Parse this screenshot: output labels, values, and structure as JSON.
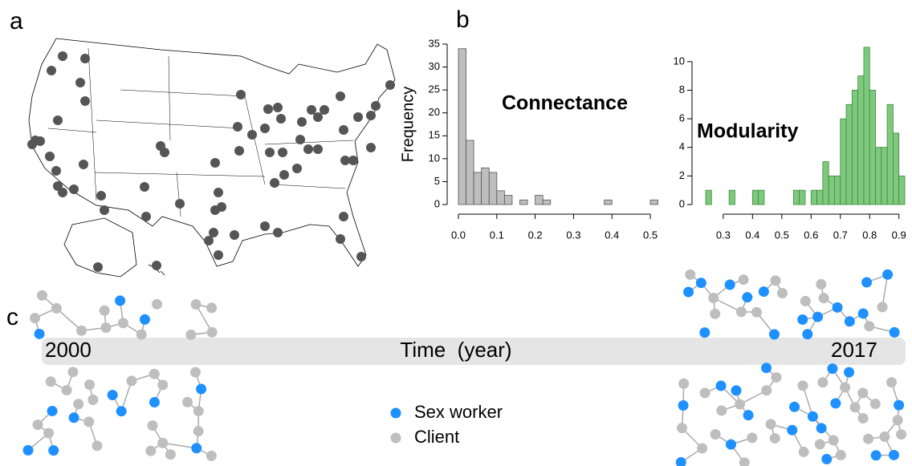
{
  "panel_labels": [
    "a",
    "b",
    "c"
  ],
  "chart_data": [
    {
      "type": "histogram",
      "title": "Connectance",
      "ylabel": "Frequency",
      "bins": [
        0,
        0.02,
        0.04,
        0.06,
        0.08,
        0.1,
        0.12,
        0.14,
        0.16,
        0.18,
        0.2,
        0.22,
        0.24,
        0.26,
        0.28,
        0.3,
        0.32,
        0.34,
        0.36,
        0.38,
        0.4,
        0.42,
        0.44,
        0.46,
        0.48,
        0.5,
        0.52
      ],
      "counts": [
        34,
        14,
        7,
        8,
        7,
        3,
        2,
        0,
        1,
        0,
        2,
        1,
        0,
        0,
        0,
        0,
        0,
        0,
        0,
        1,
        0,
        0,
        0,
        0,
        0,
        1
      ],
      "color": "#bebebe",
      "edge_color": "#555555",
      "xlim": [
        0,
        0.52
      ],
      "xticks": [
        {
          "value": 0,
          "label": "0.0"
        },
        0.1,
        0.2,
        0.3,
        0.4,
        0.5
      ],
      "ylim": [
        0,
        35
      ],
      "yticks": [
        0,
        5,
        10,
        15,
        20,
        25,
        30,
        35
      ]
    },
    {
      "type": "histogram",
      "title": "Modularity",
      "bins": [
        0.24,
        0.26,
        0.28,
        0.3,
        0.32,
        0.34,
        0.36,
        0.38,
        0.4,
        0.42,
        0.44,
        0.46,
        0.48,
        0.5,
        0.52,
        0.54,
        0.56,
        0.58,
        0.6,
        0.62,
        0.64,
        0.66,
        0.68,
        0.7,
        0.72,
        0.74,
        0.76,
        0.78,
        0.8,
        0.82,
        0.84,
        0.86,
        0.88,
        0.9,
        0.92
      ],
      "counts": [
        1,
        0,
        0,
        0,
        1,
        0,
        0,
        0,
        1,
        1,
        0,
        0,
        0,
        0,
        0,
        1,
        1,
        0,
        1,
        1,
        3,
        2,
        2,
        6,
        7,
        8,
        9,
        11,
        8,
        4,
        4,
        7,
        5,
        2
      ],
      "color": "#7fc97f",
      "edge_color": "#3a8a3a",
      "xlim": [
        0.24,
        0.92
      ],
      "xticks": [
        0.3,
        0.4,
        0.5,
        0.6,
        0.7,
        0.8,
        0.9
      ],
      "ylim": [
        0,
        11
      ],
      "yticks": [
        0,
        2,
        4,
        6,
        8,
        10
      ]
    }
  ],
  "timeline": {
    "start": "2000",
    "label": "Time  (year)",
    "end": "2017"
  },
  "legend": [
    {
      "name": "Sex worker",
      "color": "#1e90ff"
    },
    {
      "name": "Client",
      "color": "#bebebe"
    }
  ]
}
